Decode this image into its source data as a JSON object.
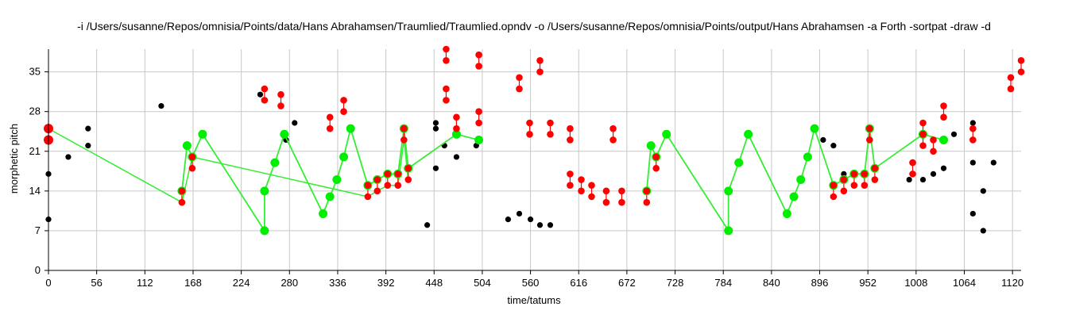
{
  "chart_data": {
    "type": "scatter",
    "title": "-i /Users/susanne/Repos/omnisia/Points/data/Hans Abrahamsen/Traumlied/Traumlied.opndv -o /Users/susanne/Repos/omnisia/Points/output/Hans Abrahamsen -a Forth -sortpat -draw -d",
    "xlabel": "time/tatums",
    "ylabel": "morphetic pitch",
    "xlim": [
      0,
      1130
    ],
    "ylim": [
      0,
      39
    ],
    "xticks": [
      0,
      56,
      112,
      168,
      224,
      280,
      336,
      392,
      448,
      504,
      560,
      616,
      672,
      728,
      784,
      840,
      896,
      952,
      1008,
      1064,
      1120
    ],
    "yticks": [
      0,
      7,
      14,
      21,
      28,
      35
    ],
    "grid": true,
    "colors": {
      "points": "#000000",
      "pattern": "#ff0000",
      "translation": "#00ee00",
      "translation_line": "#33ee33"
    },
    "point_set": [
      [
        0,
        17
      ],
      [
        0,
        9
      ],
      [
        23,
        20
      ],
      [
        46,
        25
      ],
      [
        46,
        22
      ],
      [
        131,
        29
      ],
      [
        246,
        31
      ],
      [
        276,
        23
      ],
      [
        286,
        26
      ],
      [
        440,
        8
      ],
      [
        450,
        26
      ],
      [
        450,
        25
      ],
      [
        450,
        18
      ],
      [
        460,
        22
      ],
      [
        474,
        20
      ],
      [
        497,
        22
      ],
      [
        534,
        9
      ],
      [
        547,
        10
      ],
      [
        560,
        9
      ],
      [
        571,
        8
      ],
      [
        583,
        8
      ],
      [
        900,
        23
      ],
      [
        912,
        22
      ],
      [
        924,
        17
      ],
      [
        1000,
        16
      ],
      [
        1016,
        16
      ],
      [
        1028,
        17
      ],
      [
        1040,
        18
      ],
      [
        1052,
        24
      ],
      [
        1074,
        26
      ],
      [
        1074,
        19
      ],
      [
        1074,
        10
      ],
      [
        1086,
        14
      ],
      [
        1086,
        7
      ],
      [
        1098,
        19
      ]
    ],
    "pattern_occurrences": [
      [
        [
          0,
          25
        ],
        [
          0,
          23
        ]
      ],
      [
        [
          155,
          14
        ],
        [
          155,
          12
        ]
      ],
      [
        [
          167,
          20
        ],
        [
          167,
          18
        ]
      ],
      [
        [
          251,
          32
        ],
        [
          251,
          30
        ]
      ],
      [
        [
          270,
          31
        ],
        [
          270,
          29
        ]
      ],
      [
        [
          327,
          27
        ],
        [
          327,
          25
        ]
      ],
      [
        [
          343,
          30
        ],
        [
          343,
          28
        ]
      ],
      [
        [
          371,
          15
        ],
        [
          371,
          13
        ]
      ],
      [
        [
          382,
          16
        ],
        [
          382,
          14
        ]
      ],
      [
        [
          394,
          17
        ],
        [
          394,
          15
        ]
      ],
      [
        [
          406,
          17
        ],
        [
          406,
          15
        ]
      ],
      [
        [
          413,
          25
        ],
        [
          413,
          23
        ]
      ],
      [
        [
          418,
          18
        ],
        [
          418,
          16
        ]
      ],
      [
        [
          462,
          39
        ],
        [
          462,
          37
        ]
      ],
      [
        [
          462,
          32
        ],
        [
          462,
          30
        ]
      ],
      [
        [
          474,
          27
        ],
        [
          474,
          25
        ]
      ],
      [
        [
          500,
          38
        ],
        [
          500,
          36
        ]
      ],
      [
        [
          500,
          28
        ],
        [
          500,
          26
        ]
      ],
      [
        [
          547,
          34
        ],
        [
          547,
          32
        ]
      ],
      [
        [
          559,
          26
        ],
        [
          559,
          24
        ]
      ],
      [
        [
          571,
          37
        ],
        [
          571,
          35
        ]
      ],
      [
        [
          583,
          26
        ],
        [
          583,
          24
        ]
      ],
      [
        [
          606,
          25
        ],
        [
          606,
          23
        ]
      ],
      [
        [
          606,
          17
        ],
        [
          606,
          15
        ]
      ],
      [
        [
          619,
          16
        ],
        [
          619,
          14
        ]
      ],
      [
        [
          631,
          15
        ],
        [
          631,
          13
        ]
      ],
      [
        [
          648,
          14
        ],
        [
          648,
          12
        ]
      ],
      [
        [
          656,
          25
        ],
        [
          656,
          23
        ]
      ],
      [
        [
          666,
          14
        ],
        [
          666,
          12
        ]
      ],
      [
        [
          695,
          14
        ],
        [
          695,
          12
        ]
      ],
      [
        [
          706,
          20
        ],
        [
          706,
          18
        ]
      ],
      [
        [
          912,
          15
        ],
        [
          912,
          13
        ]
      ],
      [
        [
          924,
          16
        ],
        [
          924,
          14
        ]
      ],
      [
        [
          936,
          17
        ],
        [
          936,
          15
        ]
      ],
      [
        [
          948,
          17
        ],
        [
          948,
          15
        ]
      ],
      [
        [
          954,
          25
        ],
        [
          954,
          23
        ]
      ],
      [
        [
          960,
          18
        ],
        [
          960,
          16
        ]
      ],
      [
        [
          1004,
          19
        ],
        [
          1004,
          17
        ]
      ],
      [
        [
          1016,
          26
        ],
        [
          1016,
          24
        ]
      ],
      [
        [
          1016,
          24
        ],
        [
          1016,
          22
        ]
      ],
      [
        [
          1028,
          23
        ],
        [
          1028,
          21
        ]
      ],
      [
        [
          1040,
          29
        ],
        [
          1040,
          27
        ]
      ],
      [
        [
          1074,
          25
        ],
        [
          1074,
          23
        ]
      ],
      [
        [
          1118,
          34
        ],
        [
          1118,
          32
        ]
      ],
      [
        [
          1130,
          37
        ],
        [
          1130,
          35
        ]
      ]
    ],
    "translations": [
      [
        [
          155,
          14
        ],
        [
          161,
          22
        ],
        [
          167,
          20
        ],
        [
          179,
          24
        ],
        [
          251,
          7
        ],
        [
          251,
          14
        ],
        [
          263,
          19
        ],
        [
          274,
          24
        ],
        [
          319,
          10
        ],
        [
          327,
          13
        ],
        [
          335,
          16
        ],
        [
          343,
          20
        ],
        [
          351,
          25
        ],
        [
          371,
          15
        ],
        [
          382,
          16
        ],
        [
          394,
          17
        ],
        [
          406,
          17
        ],
        [
          413,
          25
        ],
        [
          418,
          18
        ],
        [
          474,
          24
        ],
        [
          500,
          23
        ]
      ],
      [
        [
          0,
          25
        ],
        [
          155,
          12
        ],
        [
          167,
          20
        ],
        [
          371,
          13
        ],
        [
          382,
          14
        ],
        [
          394,
          15
        ],
        [
          406,
          15
        ],
        [
          413,
          23
        ],
        [
          418,
          16
        ]
      ],
      [
        [
          695,
          14
        ],
        [
          700,
          22
        ],
        [
          706,
          20
        ],
        [
          718,
          24
        ],
        [
          790,
          7
        ],
        [
          790,
          14
        ],
        [
          802,
          19
        ],
        [
          813,
          24
        ],
        [
          858,
          10
        ],
        [
          866,
          13
        ],
        [
          874,
          16
        ],
        [
          882,
          20
        ],
        [
          890,
          25
        ],
        [
          912,
          15
        ],
        [
          924,
          16
        ],
        [
          936,
          17
        ],
        [
          948,
          17
        ],
        [
          954,
          25
        ],
        [
          960,
          18
        ],
        [
          1016,
          24
        ],
        [
          1040,
          23
        ]
      ]
    ]
  }
}
